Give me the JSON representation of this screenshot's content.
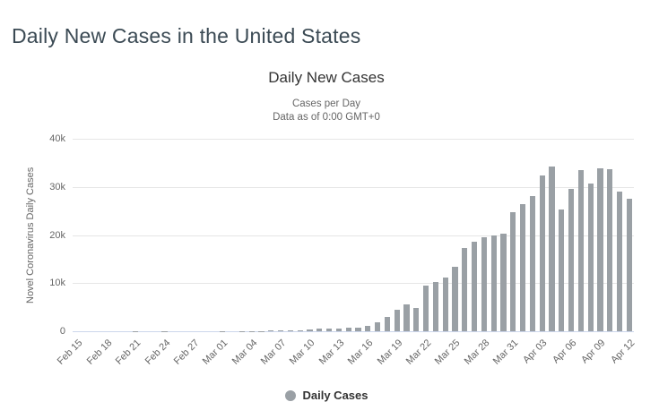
{
  "page": {
    "title": "Daily New Cases in the United States"
  },
  "chart": {
    "title": "Daily New Cases",
    "subtitle_line1": "Cases per Day",
    "subtitle_line2": "Data as of 0:00 GMT+0",
    "legend_label": "Daily Cases",
    "colors": {
      "bar": "#9aa0a5",
      "grid": "#e6e6e6",
      "axis_line": "#ccd6eb",
      "label": "#666666",
      "title": "#333333",
      "page_title": "#3b4a54"
    }
  },
  "chart_data": {
    "type": "bar",
    "title": "Daily New Cases",
    "subtitle": "Cases per Day — Data as of 0:00 GMT+0",
    "series_name": "Daily Cases",
    "xlabel": "",
    "ylabel": "Novel Coronavirus Daily Cases",
    "ylim": [
      0,
      40000
    ],
    "yticks_bottom_to_top": [
      "0",
      "10k",
      "20k",
      "30k",
      "40k"
    ],
    "grid": true,
    "legend_position": "bottom-center",
    "x_tick_every": 3,
    "x_tick_labels": [
      "Feb 15",
      "Feb 18",
      "Feb 21",
      "Feb 24",
      "Feb 27",
      "Mar 01",
      "Mar 04",
      "Mar 07",
      "Mar 10",
      "Mar 13",
      "Mar 16",
      "Mar 19",
      "Mar 22",
      "Mar 25",
      "Mar 28",
      "Mar 31",
      "Apr 03",
      "Apr 06",
      "Apr 09",
      "Apr 12"
    ],
    "categories": [
      "Feb 15",
      "Feb 16",
      "Feb 17",
      "Feb 18",
      "Feb 19",
      "Feb 20",
      "Feb 21",
      "Feb 22",
      "Feb 23",
      "Feb 24",
      "Feb 25",
      "Feb 26",
      "Feb 27",
      "Feb 28",
      "Feb 29",
      "Mar 01",
      "Mar 02",
      "Mar 03",
      "Mar 04",
      "Mar 05",
      "Mar 06",
      "Mar 07",
      "Mar 08",
      "Mar 09",
      "Mar 10",
      "Mar 11",
      "Mar 12",
      "Mar 13",
      "Mar 14",
      "Mar 15",
      "Mar 16",
      "Mar 17",
      "Mar 18",
      "Mar 19",
      "Mar 20",
      "Mar 21",
      "Mar 22",
      "Mar 23",
      "Mar 24",
      "Mar 25",
      "Mar 26",
      "Mar 27",
      "Mar 28",
      "Mar 29",
      "Mar 30",
      "Mar 31",
      "Apr 01",
      "Apr 02",
      "Apr 03",
      "Apr 04",
      "Apr 05",
      "Apr 06",
      "Apr 07",
      "Apr 08",
      "Apr 09",
      "Apr 10",
      "Apr 11",
      "Apr 12"
    ],
    "values": [
      0,
      0,
      2,
      0,
      0,
      1,
      19,
      0,
      0,
      18,
      4,
      3,
      3,
      1,
      6,
      20,
      14,
      22,
      34,
      64,
      114,
      111,
      168,
      233,
      291,
      508,
      555,
      611,
      717,
      723,
      1075,
      1825,
      2958,
      4530,
      5594,
      4825,
      9400,
      10189,
      11075,
      13355,
      17224,
      18691,
      19452,
      19913,
      20353,
      24742,
      26473,
      28103,
      32425,
      34257,
      25316,
      29625,
      33510,
      30613,
      33901,
      33752,
      29082,
      27620
    ]
  }
}
